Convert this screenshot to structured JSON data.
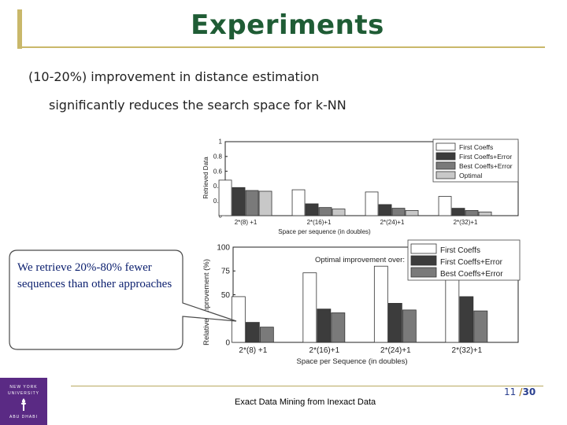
{
  "slide": {
    "title": "Experiments",
    "bullet1": "(10-20%) improvement in distance estimation",
    "bullet2": "significantly reduces the search space for k-NN",
    "callout": "We retrieve 20%-80% fewer sequences than other approaches",
    "footer": "Exact Data Mining from Inexact Data",
    "page_current": "11",
    "page_sep": "/",
    "page_total": "30"
  },
  "logo": {
    "line1": "NEW YORK",
    "line2": "UNIVERSITY",
    "line3": "ABU DHABI",
    "color": "#5a2a84"
  },
  "chart_data": [
    {
      "type": "bar",
      "categories": [
        "2*(8) +1",
        "2*(16)+1",
        "2*(24)+1",
        "2*(32)+1"
      ],
      "series": [
        {
          "name": "First Coeffs",
          "values": [
            0.48,
            0.35,
            0.32,
            0.26
          ],
          "color": "#ffffff"
        },
        {
          "name": "First Coeffs+Error",
          "values": [
            0.38,
            0.16,
            0.15,
            0.1
          ],
          "color": "#3c3c3c"
        },
        {
          "name": "Best Coeffs+Error",
          "values": [
            0.34,
            0.11,
            0.1,
            0.07
          ],
          "color": "#7a7a7a"
        },
        {
          "name": "Optimal",
          "values": [
            0.33,
            0.09,
            0.07,
            0.05
          ],
          "color": "#c8c8c8"
        }
      ],
      "xlabel": "Space per sequence (in doubles)",
      "ylabel": "Retrieved Data",
      "ylim": [
        0,
        1
      ],
      "yticks": [
        "0",
        "0.2",
        "0.4",
        "0.6",
        "0.8",
        "1"
      ],
      "legend": "top-right",
      "grid": false
    },
    {
      "type": "bar",
      "categories": [
        "2*(8) +1",
        "2*(16)+1",
        "2*(24)+1",
        "2*(32)+1"
      ],
      "series": [
        {
          "name": "First Coeffs",
          "values": [
            48,
            73,
            80,
            85
          ],
          "color": "#ffffff"
        },
        {
          "name": "First Coeffs+Error",
          "values": [
            21,
            35,
            41,
            48
          ],
          "color": "#3c3c3c"
        },
        {
          "name": "Best Coeffs+Error",
          "values": [
            16,
            31,
            34,
            33
          ],
          "color": "#7a7a7a"
        }
      ],
      "title": "Optimal improvement over:",
      "xlabel": "Space per Sequence (in doubles)",
      "ylabel": "Relative Improvement (%)",
      "ylim": [
        0,
        100
      ],
      "yticks": [
        "0",
        "50",
        "75",
        "100"
      ],
      "legend": "top-right",
      "grid": false
    }
  ]
}
